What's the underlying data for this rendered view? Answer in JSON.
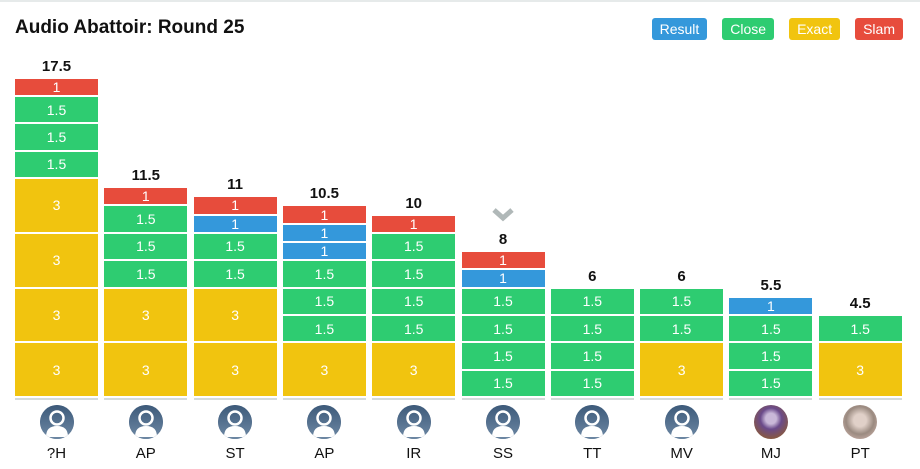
{
  "chart_data": {
    "type": "bar",
    "stacked": true,
    "title": "Audio Abattoir: Round 25",
    "legend": [
      {
        "key": "result",
        "label": "Result",
        "color": "#3498db"
      },
      {
        "key": "close",
        "label": "Close",
        "color": "#2ecc71"
      },
      {
        "key": "exact",
        "label": "Exact",
        "color": "#f1c40f"
      },
      {
        "key": "slam",
        "label": "Slam",
        "color": "#e74c3c"
      }
    ],
    "legend_position": "top-right",
    "categories": [
      "?H",
      "AP",
      "ST",
      "AP",
      "IR",
      "SS",
      "TT",
      "MV",
      "MJ",
      "PT"
    ],
    "totals": [
      "17.5",
      "11.5",
      "11",
      "10.5",
      "10",
      "8",
      "6",
      "6",
      "5.5",
      "4.5"
    ],
    "avatars": [
      "default",
      "default",
      "default",
      "default",
      "default",
      "default",
      "default",
      "default",
      "photo",
      "photo"
    ],
    "highlighted_index": 5,
    "segments_top_to_bottom": [
      [
        [
          "slam",
          1
        ],
        [
          "close",
          1.5
        ],
        [
          "close",
          1.5
        ],
        [
          "close",
          1.5
        ],
        [
          "exact",
          3
        ],
        [
          "exact",
          3
        ],
        [
          "exact",
          3
        ],
        [
          "exact",
          3
        ]
      ],
      [
        [
          "slam",
          1
        ],
        [
          "close",
          1.5
        ],
        [
          "close",
          1.5
        ],
        [
          "close",
          1.5
        ],
        [
          "exact",
          3
        ],
        [
          "exact",
          3
        ]
      ],
      [
        [
          "slam",
          1
        ],
        [
          "result",
          1
        ],
        [
          "close",
          1.5
        ],
        [
          "close",
          1.5
        ],
        [
          "exact",
          3
        ],
        [
          "exact",
          3
        ]
      ],
      [
        [
          "slam",
          1
        ],
        [
          "result",
          1
        ],
        [
          "result",
          1
        ],
        [
          "close",
          1.5
        ],
        [
          "close",
          1.5
        ],
        [
          "close",
          1.5
        ],
        [
          "exact",
          3
        ]
      ],
      [
        [
          "slam",
          1
        ],
        [
          "close",
          1.5
        ],
        [
          "close",
          1.5
        ],
        [
          "close",
          1.5
        ],
        [
          "close",
          1.5
        ],
        [
          "exact",
          3
        ]
      ],
      [
        [
          "slam",
          1
        ],
        [
          "result",
          1
        ],
        [
          "close",
          1.5
        ],
        [
          "close",
          1.5
        ],
        [
          "close",
          1.5
        ],
        [
          "close",
          1.5
        ]
      ],
      [
        [
          "close",
          1.5
        ],
        [
          "close",
          1.5
        ],
        [
          "close",
          1.5
        ],
        [
          "close",
          1.5
        ]
      ],
      [
        [
          "close",
          1.5
        ],
        [
          "close",
          1.5
        ],
        [
          "exact",
          3
        ]
      ],
      [
        [
          "result",
          1
        ],
        [
          "close",
          1.5
        ],
        [
          "close",
          1.5
        ],
        [
          "close",
          1.5
        ]
      ],
      [
        [
          "close",
          1.5
        ],
        [
          "exact",
          3
        ]
      ]
    ]
  }
}
